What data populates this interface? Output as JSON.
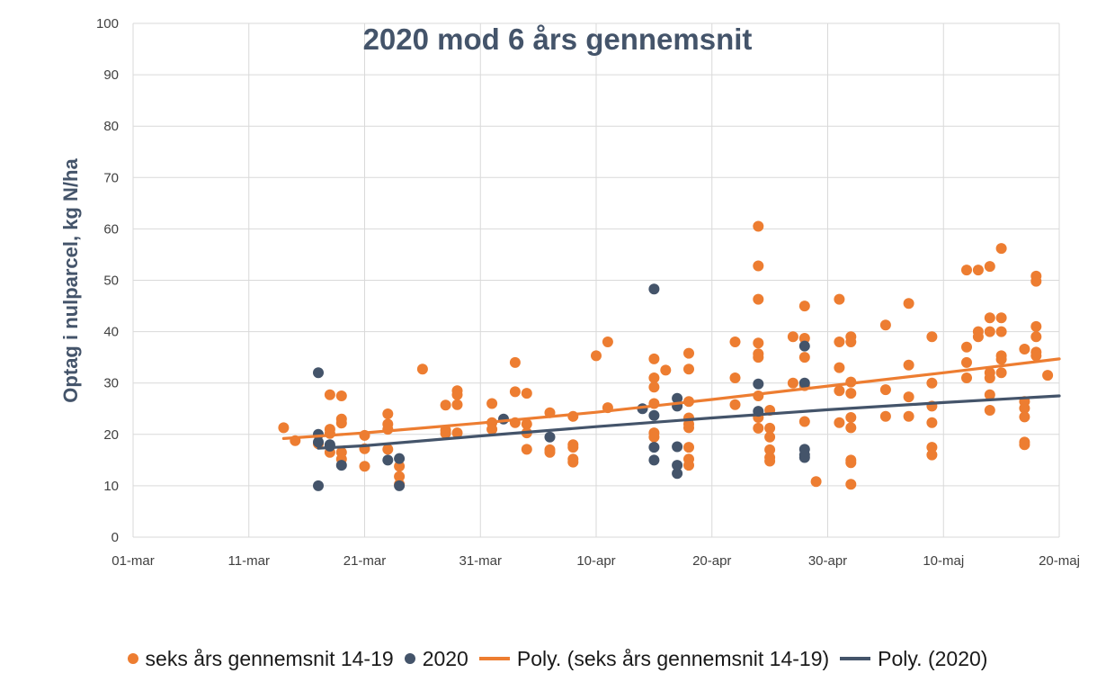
{
  "chart_data": {
    "type": "scatter",
    "title": "2020 mod 6 års gennemsnit",
    "xlabel": "",
    "ylabel": "Optag i nulparcel, kg N/ha",
    "ylim": [
      0,
      100
    ],
    "yticks": [
      0,
      10,
      20,
      30,
      40,
      50,
      60,
      70,
      80,
      90,
      100
    ],
    "xlim_day": [
      0,
      80
    ],
    "x_unit": "days after 01-mar",
    "xticks": [
      {
        "day": 0,
        "label": "01-mar"
      },
      {
        "day": 10,
        "label": "11-mar"
      },
      {
        "day": 20,
        "label": "21-mar"
      },
      {
        "day": 30,
        "label": "31-mar"
      },
      {
        "day": 40,
        "label": "10-apr"
      },
      {
        "day": 50,
        "label": "20-apr"
      },
      {
        "day": 60,
        "label": "30-apr"
      },
      {
        "day": 70,
        "label": "10-maj"
      },
      {
        "day": 80,
        "label": "20-maj"
      }
    ],
    "grid": true,
    "legend_position": "bottom",
    "colors": {
      "avg": "#ed7d31",
      "y2020": "#44546a",
      "grid": "#d9d9d9"
    },
    "series": [
      {
        "name": "seks års gennemsnit 14-19",
        "kind": "scatter",
        "points": [
          [
            13,
            21.3
          ],
          [
            14,
            18.8
          ],
          [
            16,
            18.2
          ],
          [
            17,
            21
          ],
          [
            17,
            27.7
          ],
          [
            17,
            20.2
          ],
          [
            17,
            16.5
          ],
          [
            18,
            27.5
          ],
          [
            18,
            23
          ],
          [
            18,
            22.2
          ],
          [
            18,
            16.5
          ],
          [
            18,
            15.2
          ],
          [
            20,
            19.8
          ],
          [
            20,
            17.2
          ],
          [
            20,
            13.8
          ],
          [
            22,
            24
          ],
          [
            22,
            22
          ],
          [
            22,
            21
          ],
          [
            22,
            17.1
          ],
          [
            23,
            13.8
          ],
          [
            23,
            11.8
          ],
          [
            23,
            10.3
          ],
          [
            25,
            32.7
          ],
          [
            27,
            25.7
          ],
          [
            27,
            20.8
          ],
          [
            27,
            20.2
          ],
          [
            28,
            28.5
          ],
          [
            28,
            27.7
          ],
          [
            28,
            25.8
          ],
          [
            28,
            20.3
          ],
          [
            31,
            26
          ],
          [
            31,
            22.3
          ],
          [
            31,
            21
          ],
          [
            33,
            34
          ],
          [
            33,
            28.3
          ],
          [
            33,
            22.3
          ],
          [
            34,
            28
          ],
          [
            34,
            22
          ],
          [
            34,
            20.3
          ],
          [
            34,
            17.1
          ],
          [
            36,
            24.2
          ],
          [
            36,
            17
          ],
          [
            36,
            16.5
          ],
          [
            38,
            23.5
          ],
          [
            38,
            18
          ],
          [
            38,
            17.5
          ],
          [
            38,
            15.2
          ],
          [
            38,
            14.6
          ],
          [
            40,
            35.3
          ],
          [
            41,
            38
          ],
          [
            41,
            25.2
          ],
          [
            45,
            34.7
          ],
          [
            45,
            31
          ],
          [
            45,
            29.2
          ],
          [
            45,
            26
          ],
          [
            45,
            20.3
          ],
          [
            45,
            19.5
          ],
          [
            46,
            32.5
          ],
          [
            48,
            35.8
          ],
          [
            48,
            32.7
          ],
          [
            48,
            26.4
          ],
          [
            48,
            23.2
          ],
          [
            48,
            22
          ],
          [
            48,
            21.3
          ],
          [
            48,
            17.5
          ],
          [
            48,
            15.2
          ],
          [
            48,
            14
          ],
          [
            52,
            38
          ],
          [
            52,
            31
          ],
          [
            52,
            25.8
          ],
          [
            54,
            60.5
          ],
          [
            54,
            52.8
          ],
          [
            54,
            46.3
          ],
          [
            54,
            37.8
          ],
          [
            54,
            35.7
          ],
          [
            54,
            35
          ],
          [
            54,
            27.5
          ],
          [
            54,
            23.3
          ],
          [
            54,
            21.2
          ],
          [
            55,
            24.7
          ],
          [
            55,
            21.2
          ],
          [
            55,
            19.5
          ],
          [
            55,
            17
          ],
          [
            55,
            15.5
          ],
          [
            55,
            14.8
          ],
          [
            57,
            39
          ],
          [
            57,
            30
          ],
          [
            58,
            45
          ],
          [
            58,
            38.7
          ],
          [
            58,
            35
          ],
          [
            58,
            29.5
          ],
          [
            58,
            22.5
          ],
          [
            59,
            10.8
          ],
          [
            61,
            46.3
          ],
          [
            61,
            38
          ],
          [
            61,
            33
          ],
          [
            61,
            28.5
          ],
          [
            61,
            22.3
          ],
          [
            62,
            39
          ],
          [
            62,
            38
          ],
          [
            62,
            30.2
          ],
          [
            62,
            28
          ],
          [
            62,
            23.3
          ],
          [
            62,
            21.3
          ],
          [
            62,
            15
          ],
          [
            62,
            14.5
          ],
          [
            62,
            10.3
          ],
          [
            65,
            41.3
          ],
          [
            65,
            28.7
          ],
          [
            65,
            23.5
          ],
          [
            67,
            45.5
          ],
          [
            67,
            33.5
          ],
          [
            67,
            27.3
          ],
          [
            67,
            23.5
          ],
          [
            69,
            39
          ],
          [
            69,
            30
          ],
          [
            69,
            25.5
          ],
          [
            69,
            22.3
          ],
          [
            69,
            17.5
          ],
          [
            69,
            16
          ],
          [
            72,
            52
          ],
          [
            72,
            37
          ],
          [
            72,
            34
          ],
          [
            72,
            31
          ],
          [
            73,
            52
          ],
          [
            73,
            40
          ],
          [
            73,
            39
          ],
          [
            74,
            52.7
          ],
          [
            74,
            42.7
          ],
          [
            74,
            40
          ],
          [
            74,
            32
          ],
          [
            74,
            31
          ],
          [
            74,
            27.7
          ],
          [
            74,
            24.7
          ],
          [
            75,
            56.2
          ],
          [
            75,
            42.7
          ],
          [
            75,
            40
          ],
          [
            75,
            35.3
          ],
          [
            75,
            34.6
          ],
          [
            75,
            32
          ],
          [
            77,
            36.6
          ],
          [
            77,
            26.4
          ],
          [
            77,
            25.1
          ],
          [
            77,
            23.4
          ],
          [
            77,
            18.5
          ],
          [
            77,
            18
          ],
          [
            78,
            50.8
          ],
          [
            78,
            49.8
          ],
          [
            78,
            41
          ],
          [
            78,
            39
          ],
          [
            78,
            36
          ],
          [
            78,
            35.3
          ],
          [
            79,
            31.5
          ]
        ]
      },
      {
        "name": "2020",
        "kind": "scatter",
        "points": [
          [
            16,
            32
          ],
          [
            16,
            20
          ],
          [
            16,
            18.5
          ],
          [
            16,
            10
          ],
          [
            17,
            18
          ],
          [
            17,
            17.7
          ],
          [
            18,
            14
          ],
          [
            22,
            15
          ],
          [
            23,
            15.3
          ],
          [
            23,
            10
          ],
          [
            32,
            23
          ],
          [
            36,
            19.5
          ],
          [
            44,
            25
          ],
          [
            45,
            48.3
          ],
          [
            45,
            23.7
          ],
          [
            45,
            17.5
          ],
          [
            45,
            15
          ],
          [
            47,
            27
          ],
          [
            47,
            25.5
          ],
          [
            47,
            17.6
          ],
          [
            47,
            14
          ],
          [
            47,
            12.4
          ],
          [
            54,
            29.8
          ],
          [
            54,
            24.5
          ],
          [
            58,
            37.2
          ],
          [
            58,
            30
          ],
          [
            58,
            17.1
          ],
          [
            58,
            16
          ],
          [
            58,
            15.5
          ]
        ]
      },
      {
        "name": "Poly. (seks års gennemsnit 14-19)",
        "kind": "line",
        "points": [
          [
            13,
            19.2
          ],
          [
            20,
            20.3
          ],
          [
            30,
            22.2
          ],
          [
            40,
            24.3
          ],
          [
            50,
            26.8
          ],
          [
            60,
            29.4
          ],
          [
            70,
            32
          ],
          [
            80,
            34.7
          ]
        ]
      },
      {
        "name": "Poly. (2020)",
        "kind": "line",
        "points": [
          [
            16,
            17.3
          ],
          [
            20,
            17.8
          ],
          [
            30,
            19.7
          ],
          [
            40,
            21.5
          ],
          [
            50,
            23.2
          ],
          [
            60,
            24.8
          ],
          [
            70,
            26.2
          ],
          [
            80,
            27.5
          ]
        ]
      }
    ]
  }
}
